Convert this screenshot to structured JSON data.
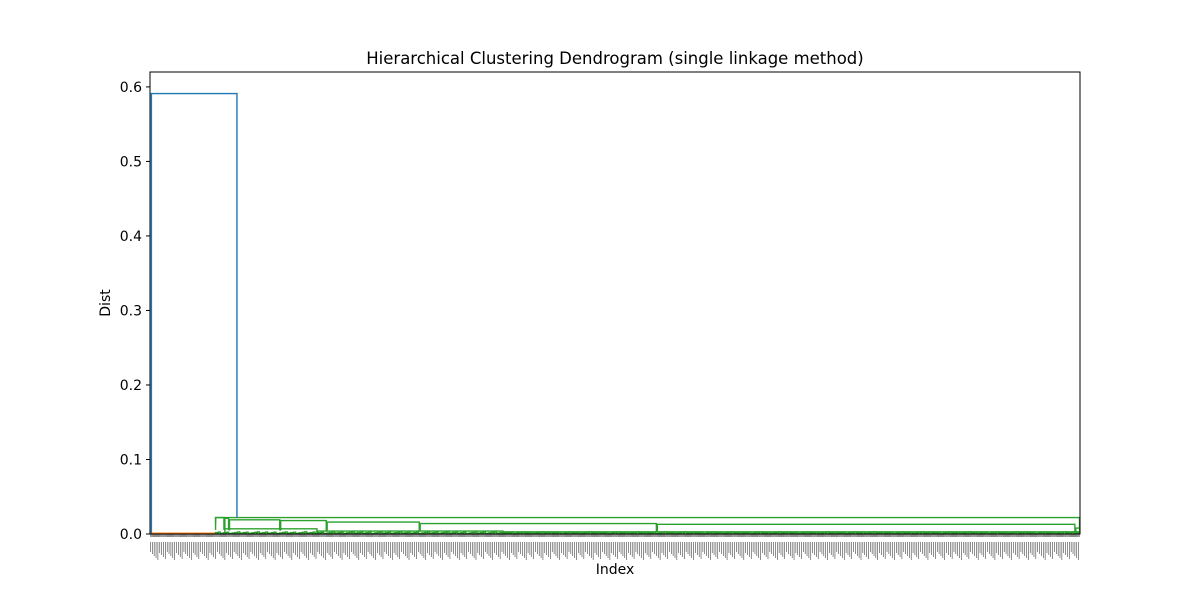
{
  "chart_data": {
    "type": "dendrogram",
    "title": "Hierarchical Clustering Dendrogram (single linkage method)",
    "xlabel": "Index",
    "ylabel": "Dist",
    "ylim": [
      0,
      0.62
    ],
    "yticks": [
      0.0,
      0.1,
      0.2,
      0.3,
      0.4,
      0.5,
      0.6
    ],
    "ytick_labels": [
      "0.0",
      "0.1",
      "0.2",
      "0.3",
      "0.4",
      "0.5",
      "0.6"
    ],
    "grid": false,
    "leaf_count": 1000,
    "colors": {
      "root": "#1f77b4",
      "cluster_1": "#ff7f0e",
      "cluster_2": "#2ca02c",
      "axes": "#000000",
      "background": "#ffffff"
    },
    "clusters": [
      {
        "name": "",
        "color_key": "cluster_1",
        "leaf_range": [
          0,
          70
        ],
        "merge_height": 0.001
      },
      {
        "name": "",
        "color_key": "cluster_2",
        "leaf_range": [
          70,
          1000
        ],
        "merge_height": 0.022,
        "sub_merges": [
          {
            "leaf_range": [
              70,
              80
            ],
            "height": 0.022
          },
          {
            "leaf_range": [
              80,
              85
            ],
            "height": 0.021
          },
          {
            "leaf_range": [
              85,
              140
            ],
            "height": 0.019
          },
          {
            "leaf_range": [
              140,
              190
            ],
            "height": 0.018
          },
          {
            "leaf_range": [
              190,
              290
            ],
            "height": 0.016
          },
          {
            "leaf_range": [
              290,
              545
            ],
            "height": 0.014
          },
          {
            "leaf_range": [
              545,
              995
            ],
            "height": 0.013
          },
          {
            "leaf_range": [
              995,
              1000
            ],
            "height": 0.008
          },
          {
            "leaf_range": [
              80,
              180
            ],
            "height": 0.007
          },
          {
            "leaf_range": [
              180,
              380
            ],
            "height": 0.004
          },
          {
            "leaf_range": [
              380,
              1000
            ],
            "height": 0.003
          }
        ]
      }
    ],
    "root_merge": {
      "height": 0.591,
      "left_x": 1,
      "right_x": 93,
      "left_child_height": 0.001,
      "right_child_height": 0.022
    }
  }
}
